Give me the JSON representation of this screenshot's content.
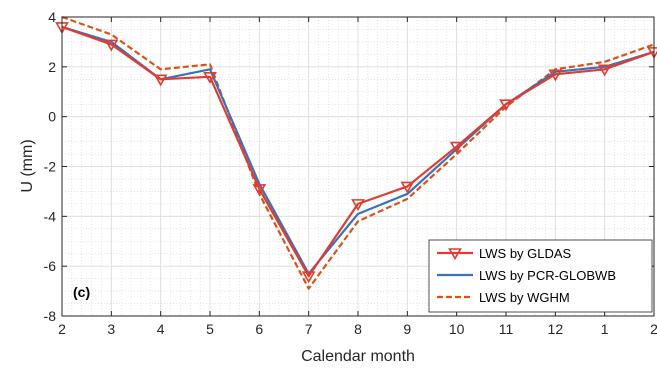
{
  "chart_data": {
    "type": "line",
    "panel_label": "(c)",
    "xlabel": "Calendar month",
    "ylabel": "U (mm)",
    "ylim": [
      -8,
      4
    ],
    "yticks": [
      -8,
      -6,
      -4,
      -2,
      0,
      2,
      4
    ],
    "categories": [
      "2",
      "3",
      "4",
      "5",
      "6",
      "7",
      "8",
      "9",
      "10",
      "11",
      "12",
      "1",
      "2"
    ],
    "grid": true,
    "minor_grid": true,
    "legend_position": "bottom-right",
    "series": [
      {
        "name": "LWS by GLDAS",
        "color": "#e03c31",
        "style": "solid",
        "marker": "triangle-down",
        "values": [
          3.6,
          2.9,
          1.5,
          1.6,
          -2.9,
          -6.4,
          -3.5,
          -2.8,
          -1.2,
          0.5,
          1.7,
          1.9,
          2.6
        ]
      },
      {
        "name": "LWS by PCR-GLOBWB",
        "color": "#3a72b8",
        "style": "solid",
        "marker": "none",
        "values": [
          3.6,
          3.0,
          1.5,
          1.9,
          -2.7,
          -6.3,
          -3.9,
          -3.1,
          -1.3,
          0.5,
          1.8,
          2.0,
          2.6
        ]
      },
      {
        "name": "LWS by WGHM",
        "color": "#d95319",
        "style": "dashed",
        "marker": "none",
        "values": [
          4.0,
          3.3,
          1.9,
          2.1,
          -3.1,
          -6.9,
          -4.2,
          -3.3,
          -1.5,
          0.4,
          1.9,
          2.2,
          2.9
        ]
      }
    ]
  }
}
